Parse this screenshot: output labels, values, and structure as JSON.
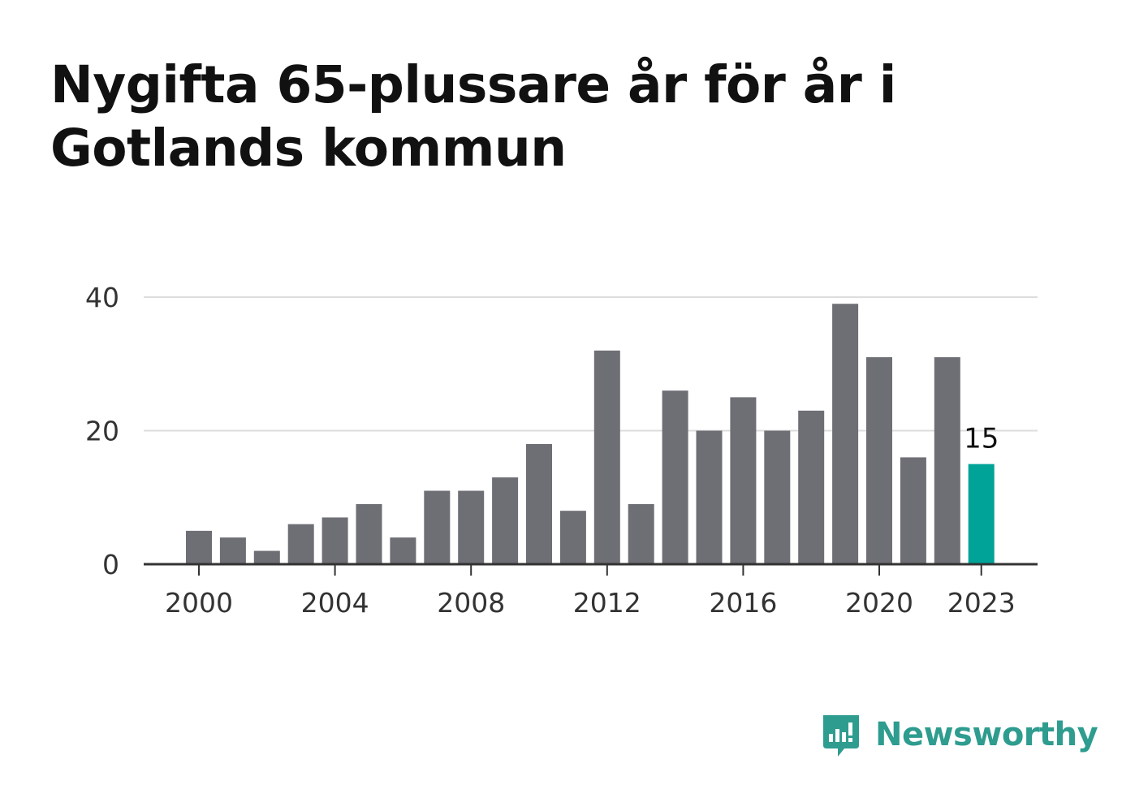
{
  "title": "Nygifta 65-plussare år för år i Gotlands kommun",
  "brand": {
    "name": "Newsworthy",
    "color": "#2e9c8f"
  },
  "colors": {
    "bar": "#6e6e75",
    "highlight": "#00a398",
    "grid": "#dddddd",
    "axis": "#333333",
    "text": "#333333"
  },
  "chart_data": {
    "type": "bar",
    "x": [
      2000,
      2001,
      2002,
      2003,
      2004,
      2005,
      2006,
      2007,
      2008,
      2009,
      2010,
      2011,
      2012,
      2013,
      2014,
      2015,
      2016,
      2017,
      2018,
      2019,
      2020,
      2021,
      2022,
      2023
    ],
    "values": [
      5,
      4,
      2,
      6,
      7,
      9,
      4,
      11,
      11,
      13,
      18,
      8,
      32,
      9,
      26,
      20,
      25,
      20,
      23,
      39,
      31,
      16,
      31,
      15
    ],
    "x_ticks": [
      "2000",
      "2004",
      "2008",
      "2012",
      "2016",
      "2020",
      "2023"
    ],
    "y_ticks": [
      "0",
      "20",
      "40"
    ],
    "ylim": [
      0,
      40
    ],
    "grid": true,
    "highlight": {
      "x": 2023,
      "label": "15"
    }
  }
}
